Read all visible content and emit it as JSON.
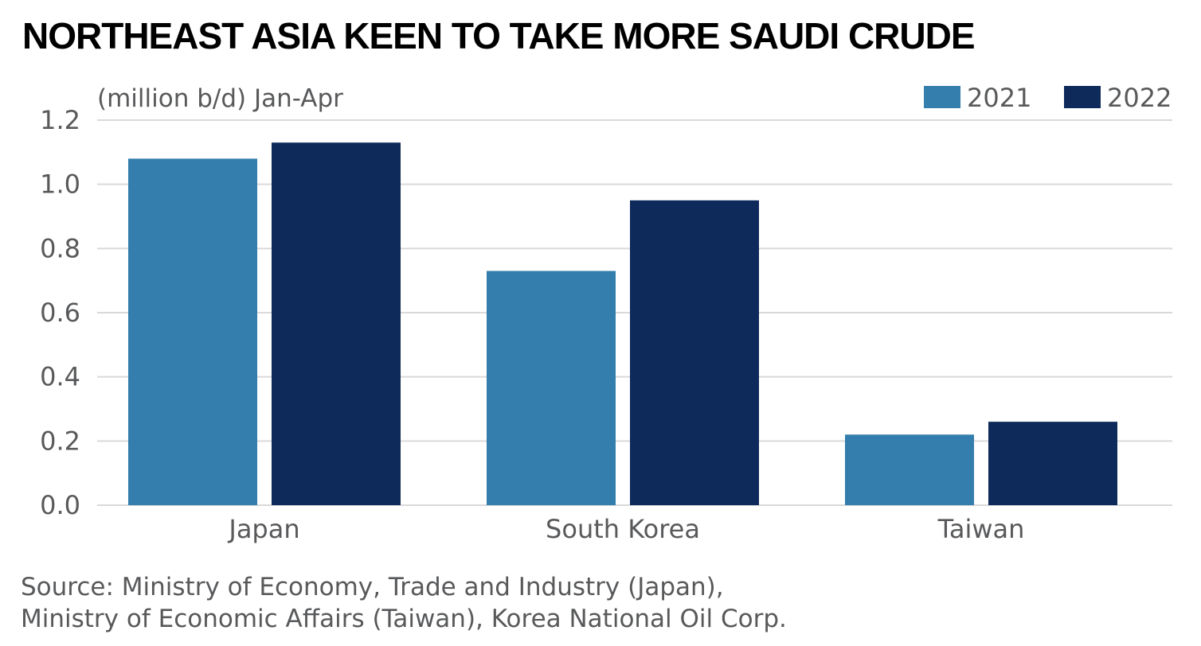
{
  "title": "NORTHEAST ASIA KEEN TO TAKE MORE SAUDI CRUDE",
  "source_lines": [
    "Source: Ministry of Economy, Trade and Industry (Japan),",
    "Ministry of Economic Affairs (Taiwan), Korea National Oil Corp."
  ],
  "colors": {
    "series_2021": "#337eac",
    "series_2022": "#0e2a5b",
    "gridline": "#d9d9d9",
    "text": "#58595b"
  },
  "chart_data": {
    "type": "bar",
    "title": "NORTHEAST ASIA KEEN TO TAKE MORE SAUDI CRUDE",
    "ylabel": "(million b/d) Jan-Apr",
    "xlabel": "",
    "categories": [
      "Japan",
      "South Korea",
      "Taiwan"
    ],
    "series": [
      {
        "name": "2021",
        "values": [
          1.08,
          0.73,
          0.22
        ]
      },
      {
        "name": "2022",
        "values": [
          1.13,
          0.95,
          0.26
        ]
      }
    ],
    "ylim": [
      0,
      1.2
    ],
    "yticks": [
      "0.0",
      "0.2",
      "0.4",
      "0.6",
      "0.8",
      "1.0",
      "1.2"
    ],
    "grid": true,
    "legend": "top-right"
  }
}
